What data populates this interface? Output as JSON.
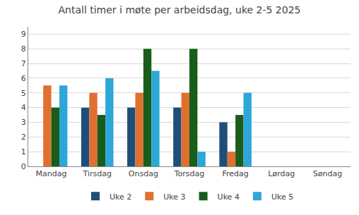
{
  "chart_data": {
    "type": "bar",
    "title": "Antall timer i møte per arbeidsdag, uke 2-5 2025",
    "categories": [
      "Mandag",
      "Tirsdag",
      "Onsdag",
      "Torsdag",
      "Fredag",
      "Lørdag",
      "Søndag"
    ],
    "series": [
      {
        "name": "Uke 2",
        "color": "#1f4e79",
        "values": [
          0,
          4,
          4,
          4,
          3,
          0,
          0
        ]
      },
      {
        "name": "Uke 3",
        "color": "#e07030",
        "values": [
          5.5,
          5,
          5,
          5,
          1,
          0,
          0
        ]
      },
      {
        "name": "Uke 4",
        "color": "#1a5c1a",
        "values": [
          4,
          3.5,
          8,
          8,
          3.5,
          0,
          0
        ]
      },
      {
        "name": "Uke 5",
        "color": "#2ca7d8",
        "values": [
          5.5,
          6,
          6.5,
          1,
          5,
          0,
          0
        ]
      }
    ],
    "ylim": [
      0,
      9.5
    ],
    "yticks": [
      0,
      1,
      2,
      3,
      4,
      5,
      6,
      7,
      8,
      9
    ],
    "grid": true,
    "legend": "bottom"
  }
}
